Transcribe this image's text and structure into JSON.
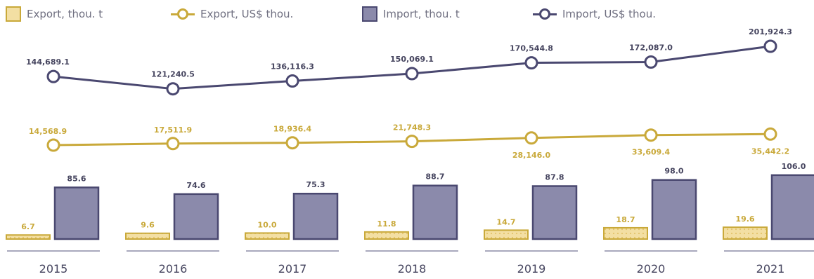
{
  "legend": {
    "export_tons": "Export, thou. t",
    "export_usd": "Export, US$ thou.",
    "import_tons": "Import, thou. t",
    "import_usd": "Import, US$ thou."
  },
  "colors": {
    "export": "#c9a93a",
    "export_fill": "#f3dfa3",
    "import": "#4a4870",
    "import_fill": "#8b8aab",
    "axis": "#a9a8bd",
    "label_export": "#c9a93a",
    "label_import": "#46455f"
  },
  "chart_data": {
    "type": "bar",
    "categories": [
      "2015",
      "2016",
      "2017",
      "2018",
      "2019",
      "2020",
      "2021"
    ],
    "series": [
      {
        "name": "Export, thou. t",
        "type": "bar",
        "values": [
          6.7,
          9.6,
          10.0,
          11.8,
          14.7,
          18.7,
          19.6
        ],
        "labels": [
          "6.7",
          "9.6",
          "10.0",
          "11.8",
          "14.7",
          "18.7",
          "19.6"
        ]
      },
      {
        "name": "Import, thou. t",
        "type": "bar",
        "values": [
          85.6,
          74.6,
          75.3,
          88.7,
          87.8,
          98.0,
          106.0
        ],
        "labels": [
          "85.6",
          "74.6",
          "75.3",
          "88.7",
          "87.8",
          "98.0",
          "106.0"
        ]
      },
      {
        "name": "Export, US$ thou.",
        "type": "line",
        "values": [
          14568.9,
          17511.9,
          18936.4,
          21748.3,
          28146.0,
          33609.4,
          35442.2
        ],
        "labels": [
          "14,568.9",
          "17,511.9",
          "18,936.4",
          "21,748.3",
          "28,146.0",
          "33,609.4",
          "35,442.2"
        ]
      },
      {
        "name": "Import, US$ thou.",
        "type": "line",
        "values": [
          144689.1,
          121240.5,
          136116.3,
          150069.1,
          170544.8,
          172087.0,
          201924.3
        ],
        "labels": [
          "144,689.1",
          "121,240.5",
          "136,116.3",
          "150,069.1",
          "170,544.8",
          "172,087.0",
          "201,924.3"
        ]
      }
    ],
    "legend_position": "top",
    "grid": false
  }
}
